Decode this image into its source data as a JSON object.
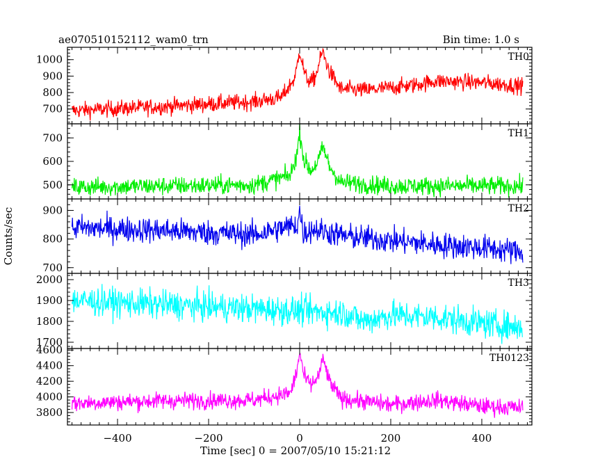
{
  "header": {
    "left_title": "ae070510152112_wam0_trn",
    "right_title": "Bin time: 1.0 s"
  },
  "chart_data": {
    "type": "line",
    "title": "ae070510152112_wam0_trn",
    "subtitle": "Bin time: 1.0 s",
    "xlabel": "Time [sec] 0 = 2007/05/10 15:21:12",
    "ylabel": "Counts/sec",
    "xlim": [
      -510,
      510
    ],
    "x_ticks": [
      -400,
      -200,
      0,
      200,
      400
    ],
    "x_tick_labels": [
      "−400",
      "−200",
      "0",
      "200",
      "400"
    ],
    "grid": false,
    "legend": "none",
    "panels": [
      {
        "name": "TH0",
        "color": "#ff0000",
        "ylim": [
          610,
          1075
        ],
        "y_ticks": [
          700,
          800,
          900,
          1000
        ],
        "y_tick_labels": [
          "700",
          "800",
          "900",
          "1000"
        ],
        "baseline_points": [
          [
            -500,
            690
          ],
          [
            -300,
            715
          ],
          [
            -100,
            745
          ],
          [
            -40,
            770
          ],
          [
            -10,
            890
          ],
          [
            0,
            1060
          ],
          [
            12,
            900
          ],
          [
            25,
            860
          ],
          [
            35,
            900
          ],
          [
            50,
            1050
          ],
          [
            65,
            930
          ],
          [
            90,
            820
          ],
          [
            150,
            815
          ],
          [
            250,
            845
          ],
          [
            300,
            870
          ],
          [
            400,
            860
          ],
          [
            490,
            840
          ]
        ],
        "noise": 50
      },
      {
        "name": "TH1",
        "color": "#00ee00",
        "ylim": [
          440,
          760
        ],
        "y_ticks": [
          500,
          600,
          700
        ],
        "y_tick_labels": [
          "500",
          "600",
          "700"
        ],
        "baseline_points": [
          [
            -500,
            490
          ],
          [
            -100,
            500
          ],
          [
            -20,
            540
          ],
          [
            -5,
            640
          ],
          [
            0,
            730
          ],
          [
            10,
            600
          ],
          [
            25,
            560
          ],
          [
            40,
            600
          ],
          [
            52,
            660
          ],
          [
            65,
            580
          ],
          [
            90,
            510
          ],
          [
            200,
            495
          ],
          [
            490,
            495
          ]
        ],
        "noise": 40
      },
      {
        "name": "TH2",
        "color": "#0000ee",
        "ylim": [
          680,
          940
        ],
        "y_ticks": [
          700,
          800,
          900
        ],
        "y_tick_labels": [
          "700",
          "800",
          "900"
        ],
        "baseline_points": [
          [
            -500,
            840
          ],
          [
            -300,
            830
          ],
          [
            -100,
            815
          ],
          [
            -5,
            850
          ],
          [
            0,
            900
          ],
          [
            8,
            820
          ],
          [
            30,
            835
          ],
          [
            100,
            810
          ],
          [
            200,
            795
          ],
          [
            300,
            780
          ],
          [
            400,
            770
          ],
          [
            490,
            755
          ]
        ],
        "noise": 45
      },
      {
        "name": "TH3",
        "color": "#00ffff",
        "ylim": [
          1670,
          2030
        ],
        "y_ticks": [
          1700,
          1800,
          1900,
          2000
        ],
        "y_tick_labels": [
          "1700",
          "1800",
          "1900",
          "2000"
        ],
        "baseline_points": [
          [
            -500,
            1900
          ],
          [
            -300,
            1880
          ],
          [
            -100,
            1860
          ],
          [
            100,
            1840
          ],
          [
            140,
            1800
          ],
          [
            200,
            1830
          ],
          [
            300,
            1820
          ],
          [
            400,
            1790
          ],
          [
            490,
            1770
          ]
        ],
        "noise": 70
      },
      {
        "name": "TH0123",
        "color": "#ff00ff",
        "ylim": [
          3640,
          4620
        ],
        "y_ticks": [
          3800,
          4000,
          4200,
          4400,
          4600
        ],
        "y_tick_labels": [
          "3800",
          "4000",
          "4200",
          "4400",
          "4600"
        ],
        "baseline_points": [
          [
            -500,
            3920
          ],
          [
            -300,
            3950
          ],
          [
            -100,
            3960
          ],
          [
            -20,
            4050
          ],
          [
            -5,
            4350
          ],
          [
            0,
            4580
          ],
          [
            10,
            4250
          ],
          [
            25,
            4150
          ],
          [
            40,
            4250
          ],
          [
            52,
            4480
          ],
          [
            65,
            4200
          ],
          [
            90,
            3980
          ],
          [
            200,
            3900
          ],
          [
            300,
            3960
          ],
          [
            400,
            3880
          ],
          [
            490,
            3860
          ]
        ],
        "noise": 110
      }
    ]
  }
}
